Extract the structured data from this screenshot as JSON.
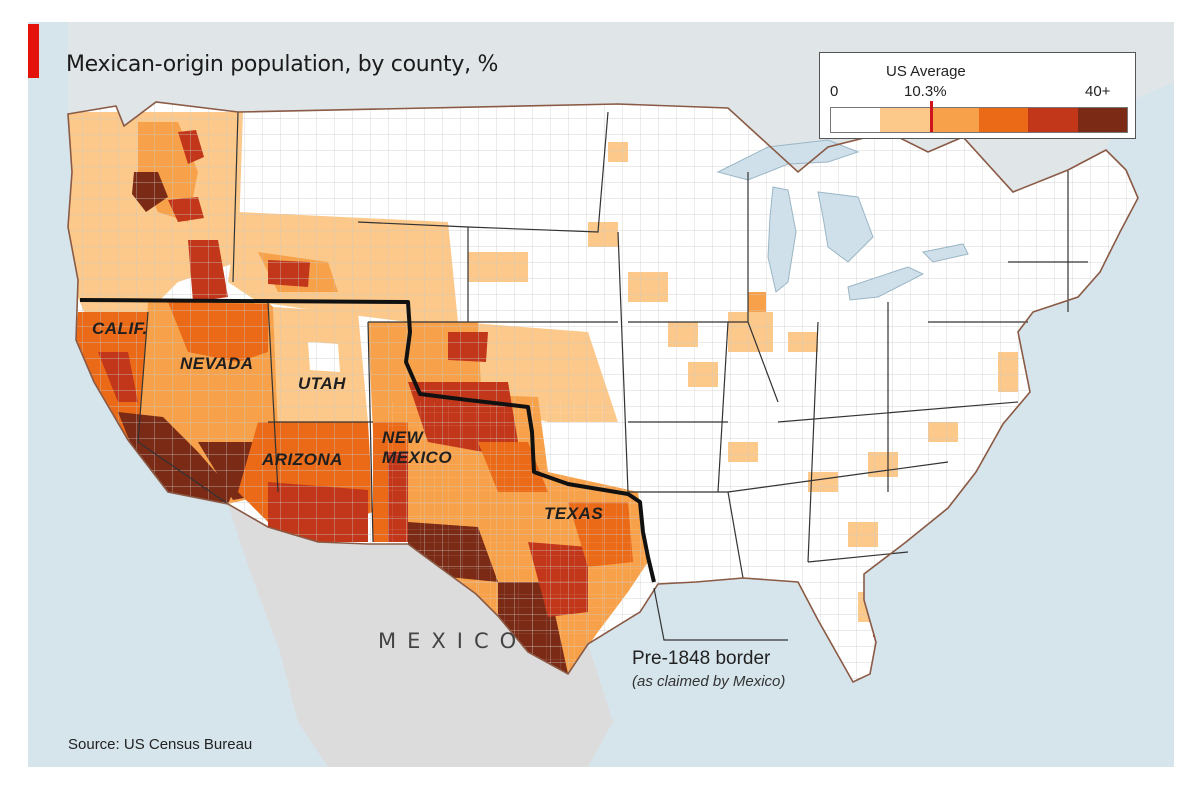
{
  "title": "Mexican-origin population, by county, %",
  "source": "Source: US Census Bureau",
  "colors": {
    "ocean": "#d6e4ec",
    "mexico_land": "#dcdcdc",
    "great_lakes": "#cfe0ea",
    "accent": "#e3120b",
    "border_line": "#111111",
    "avg_marker": "#d0141b"
  },
  "legend": {
    "average_label": "US Average",
    "average_value": "10.3%",
    "min_label": "0",
    "max_label": "40+",
    "bins": [
      "#ffffff",
      "#fcc98b",
      "#f7a24a",
      "#ea6a17",
      "#c2361a",
      "#7a2a15"
    ]
  },
  "state_labels": [
    {
      "id": "calif",
      "text": "CALIF."
    },
    {
      "id": "nevada",
      "text": "NEVADA"
    },
    {
      "id": "utah",
      "text": "UTAH"
    },
    {
      "id": "arizona",
      "text": "ARIZONA"
    },
    {
      "id": "new-mexico",
      "text": "NEW\nMEXICO"
    },
    {
      "id": "texas",
      "text": "TEXAS"
    }
  ],
  "mexico_label": "MEXICO",
  "border_annotation": {
    "title": "Pre-1848 border",
    "subtitle": "(as claimed by Mexico)"
  }
}
